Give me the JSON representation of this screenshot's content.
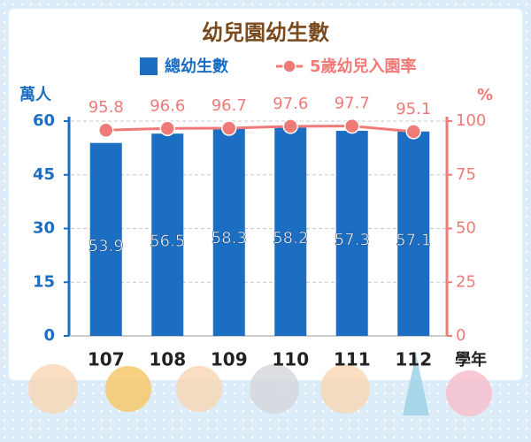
{
  "chart_data": {
    "type": "bar",
    "title": "幼兒園幼生數",
    "categories": [
      "107",
      "108",
      "109",
      "110",
      "111",
      "112"
    ],
    "x_unit": "學年",
    "y_unit": "萬人",
    "y2_unit": "%",
    "series": [
      {
        "name": "總幼生數",
        "type": "bar",
        "color": "#1b6ec2",
        "values": [
          53.9,
          56.5,
          58.3,
          58.2,
          57.3,
          57.1
        ]
      },
      {
        "name": "5歲幼兒入園率",
        "type": "line",
        "axis": "y2",
        "color": "#f07a78",
        "values": [
          95.8,
          96.6,
          96.7,
          97.6,
          97.7,
          95.1
        ]
      }
    ],
    "ylim": [
      0,
      60
    ],
    "yticks": [
      0,
      15,
      30,
      45,
      60
    ],
    "y2lim": [
      0,
      100
    ],
    "y2ticks": [
      0,
      25,
      50,
      75,
      100
    ],
    "grid": true
  }
}
